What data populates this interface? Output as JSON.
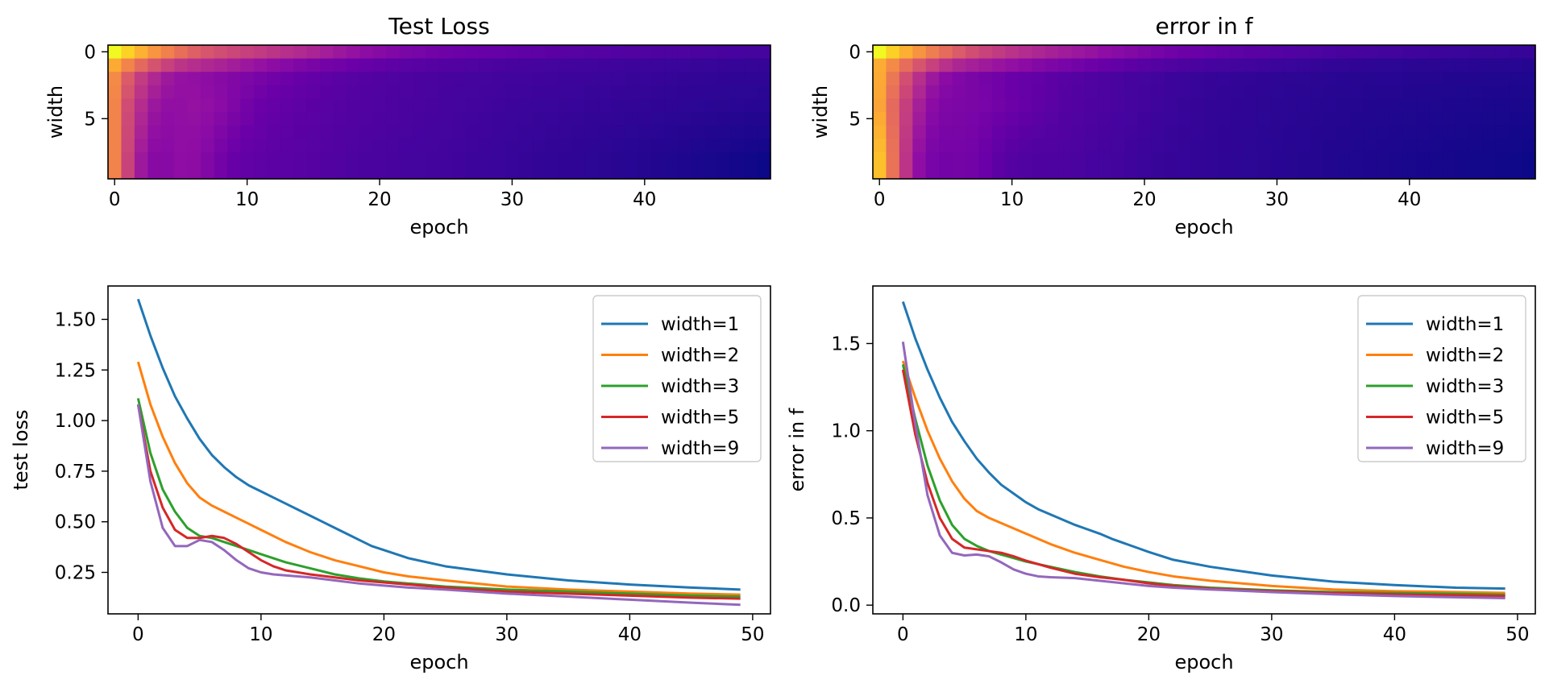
{
  "colors": {
    "width=1": "#1f77b4",
    "width=2": "#ff7f0e",
    "width=3": "#2ca02c",
    "width=5": "#d62728",
    "width=9": "#9467bd",
    "colormap": "plasma"
  },
  "chart_data": [
    {
      "id": "heat_loss",
      "type": "heatmap",
      "title": "Test Loss",
      "xlabel": "epoch",
      "ylabel": "width",
      "x_ticks": [
        0,
        10,
        20,
        30,
        40
      ],
      "y_ticks": [
        0,
        5
      ],
      "rows": 10,
      "cols": 50,
      "colormap": "plasma",
      "curve_source": 0
    },
    {
      "id": "heat_err",
      "type": "heatmap",
      "title": "error in f",
      "xlabel": "epoch",
      "ylabel": "width",
      "x_ticks": [
        0,
        10,
        20,
        30,
        40
      ],
      "y_ticks": [
        0,
        5
      ],
      "rows": 10,
      "cols": 50,
      "colormap": "plasma",
      "curve_source": 1
    },
    {
      "id": "line_loss",
      "type": "line",
      "title": "",
      "xlabel": "epoch",
      "ylabel": "test loss",
      "xlim": [
        -2.45,
        51.45
      ],
      "ylim": [
        0.045,
        1.665
      ],
      "x_ticks": [
        0,
        10,
        20,
        30,
        40,
        50
      ],
      "y_ticks": [
        0.25,
        0.5,
        0.75,
        1.0,
        1.25,
        1.5
      ],
      "y_tick_labels": [
        "0.25",
        "0.50",
        "0.75",
        "1.00",
        "1.25",
        "1.50"
      ],
      "legend": "top-right",
      "series": [
        {
          "name": "width=1",
          "x": [
            0,
            1,
            2,
            3,
            4,
            5,
            6,
            7,
            8,
            9,
            10,
            11,
            12,
            13,
            14,
            15,
            16,
            17,
            18,
            19,
            20,
            22,
            25,
            30,
            35,
            40,
            45,
            49
          ],
          "values": [
            1.6,
            1.42,
            1.26,
            1.12,
            1.01,
            0.91,
            0.83,
            0.77,
            0.72,
            0.68,
            0.65,
            0.62,
            0.59,
            0.56,
            0.53,
            0.5,
            0.47,
            0.44,
            0.41,
            0.38,
            0.36,
            0.32,
            0.28,
            0.24,
            0.21,
            0.19,
            0.175,
            0.165
          ]
        },
        {
          "name": "width=2",
          "x": [
            0,
            1,
            2,
            3,
            4,
            5,
            6,
            7,
            8,
            9,
            10,
            12,
            14,
            16,
            18,
            20,
            22,
            25,
            30,
            35,
            40,
            45,
            49
          ],
          "values": [
            1.29,
            1.08,
            0.92,
            0.79,
            0.69,
            0.62,
            0.58,
            0.55,
            0.52,
            0.49,
            0.46,
            0.4,
            0.35,
            0.31,
            0.28,
            0.25,
            0.23,
            0.21,
            0.18,
            0.165,
            0.155,
            0.145,
            0.14
          ]
        },
        {
          "name": "width=3",
          "x": [
            0,
            1,
            2,
            3,
            4,
            5,
            6,
            7,
            8,
            9,
            10,
            12,
            14,
            16,
            18,
            20,
            22,
            25,
            30,
            35,
            40,
            45,
            49
          ],
          "values": [
            1.11,
            0.84,
            0.66,
            0.55,
            0.47,
            0.43,
            0.42,
            0.4,
            0.38,
            0.36,
            0.34,
            0.3,
            0.27,
            0.24,
            0.22,
            0.205,
            0.195,
            0.18,
            0.165,
            0.155,
            0.145,
            0.135,
            0.13
          ]
        },
        {
          "name": "width=5",
          "x": [
            0,
            1,
            2,
            3,
            4,
            5,
            6,
            7,
            8,
            9,
            10,
            11,
            12,
            14,
            16,
            18,
            20,
            22,
            25,
            30,
            35,
            40,
            45,
            49
          ],
          "values": [
            1.08,
            0.75,
            0.57,
            0.46,
            0.42,
            0.42,
            0.43,
            0.42,
            0.39,
            0.35,
            0.31,
            0.28,
            0.26,
            0.24,
            0.225,
            0.21,
            0.2,
            0.19,
            0.175,
            0.155,
            0.145,
            0.135,
            0.125,
            0.12
          ]
        },
        {
          "name": "width=9",
          "x": [
            0,
            1,
            2,
            3,
            4,
            5,
            6,
            7,
            8,
            9,
            10,
            11,
            12,
            14,
            16,
            18,
            20,
            22,
            25,
            30,
            35,
            40,
            45,
            49
          ],
          "values": [
            1.08,
            0.7,
            0.47,
            0.38,
            0.38,
            0.41,
            0.4,
            0.36,
            0.31,
            0.27,
            0.25,
            0.24,
            0.235,
            0.225,
            0.21,
            0.195,
            0.185,
            0.175,
            0.165,
            0.145,
            0.13,
            0.115,
            0.1,
            0.09
          ]
        }
      ]
    },
    {
      "id": "line_err",
      "type": "line",
      "title": "",
      "xlabel": "epoch",
      "ylabel": "error in f",
      "xlim": [
        -2.45,
        51.45
      ],
      "ylim": [
        -0.05,
        1.83
      ],
      "x_ticks": [
        0,
        10,
        20,
        30,
        40,
        50
      ],
      "y_ticks": [
        0.0,
        0.5,
        1.0,
        1.5
      ],
      "y_tick_labels": [
        "0.0",
        "0.5",
        "1.0",
        "1.5"
      ],
      "legend": "top-right",
      "series": [
        {
          "name": "width=1",
          "x": [
            0,
            1,
            2,
            3,
            4,
            5,
            6,
            7,
            8,
            9,
            10,
            11,
            12,
            13,
            14,
            15,
            16,
            17,
            18,
            19,
            20,
            22,
            25,
            30,
            35,
            40,
            45,
            49
          ],
          "values": [
            1.74,
            1.53,
            1.35,
            1.19,
            1.05,
            0.94,
            0.84,
            0.76,
            0.69,
            0.64,
            0.59,
            0.55,
            0.52,
            0.49,
            0.46,
            0.435,
            0.41,
            0.38,
            0.355,
            0.33,
            0.305,
            0.26,
            0.22,
            0.17,
            0.135,
            0.115,
            0.1,
            0.095
          ]
        },
        {
          "name": "width=2",
          "x": [
            0,
            1,
            2,
            3,
            4,
            5,
            6,
            7,
            8,
            9,
            10,
            12,
            14,
            16,
            18,
            20,
            22,
            25,
            30,
            35,
            40,
            45,
            49
          ],
          "values": [
            1.4,
            1.19,
            1.0,
            0.84,
            0.71,
            0.61,
            0.54,
            0.5,
            0.47,
            0.44,
            0.41,
            0.35,
            0.3,
            0.26,
            0.22,
            0.19,
            0.165,
            0.14,
            0.11,
            0.09,
            0.08,
            0.075,
            0.07
          ]
        },
        {
          "name": "width=3",
          "x": [
            0,
            1,
            2,
            3,
            4,
            5,
            6,
            7,
            8,
            9,
            10,
            12,
            14,
            16,
            18,
            20,
            22,
            25,
            30,
            35,
            40,
            45,
            49
          ],
          "values": [
            1.38,
            1.07,
            0.8,
            0.6,
            0.46,
            0.38,
            0.34,
            0.31,
            0.29,
            0.27,
            0.25,
            0.22,
            0.19,
            0.165,
            0.145,
            0.13,
            0.115,
            0.1,
            0.085,
            0.075,
            0.07,
            0.065,
            0.06
          ]
        },
        {
          "name": "width=5",
          "x": [
            0,
            1,
            2,
            3,
            4,
            5,
            6,
            7,
            8,
            9,
            10,
            12,
            14,
            16,
            18,
            20,
            22,
            25,
            30,
            35,
            40,
            45,
            49
          ],
          "values": [
            1.35,
            0.98,
            0.7,
            0.5,
            0.38,
            0.33,
            0.32,
            0.31,
            0.3,
            0.28,
            0.255,
            0.215,
            0.18,
            0.16,
            0.145,
            0.125,
            0.11,
            0.095,
            0.08,
            0.07,
            0.062,
            0.056,
            0.052
          ]
        },
        {
          "name": "width=9",
          "x": [
            0,
            1,
            2,
            3,
            4,
            5,
            6,
            7,
            8,
            9,
            10,
            11,
            12,
            14,
            16,
            18,
            20,
            22,
            25,
            30,
            35,
            40,
            45,
            49
          ],
          "values": [
            1.51,
            1.04,
            0.63,
            0.4,
            0.3,
            0.285,
            0.29,
            0.28,
            0.245,
            0.205,
            0.18,
            0.165,
            0.16,
            0.155,
            0.14,
            0.125,
            0.11,
            0.1,
            0.09,
            0.075,
            0.062,
            0.052,
            0.045,
            0.04
          ]
        }
      ]
    }
  ]
}
